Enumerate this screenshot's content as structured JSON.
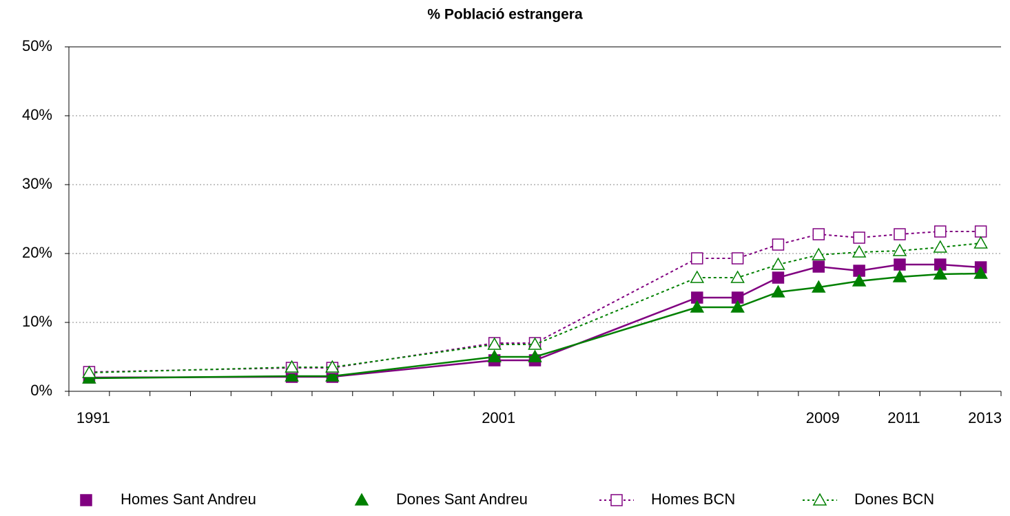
{
  "chart_data": {
    "type": "line",
    "title": "% Població estrangera",
    "x": [
      1991,
      1996,
      1997,
      2001,
      2002,
      2006,
      2007,
      2008,
      2009,
      2010,
      2011,
      2012,
      2013
    ],
    "xlim": [
      1990.5,
      2013.5
    ],
    "xticks": [
      1991,
      2001,
      2009,
      2011,
      2013
    ],
    "ylim": [
      0,
      50
    ],
    "yticks": [
      {
        "value": 0,
        "label": "0%"
      },
      {
        "value": 10,
        "label": "10%"
      },
      {
        "value": 20,
        "label": "20%"
      },
      {
        "value": 30,
        "label": "30%"
      },
      {
        "value": 40,
        "label": "40%"
      },
      {
        "value": 50,
        "label": "50%"
      }
    ],
    "grid": true,
    "legend": "bottom",
    "series": [
      {
        "name": "Homes Sant Andreu",
        "color": "#800080",
        "marker": "square",
        "filled": true,
        "dashed": false,
        "values": [
          2.0,
          2.1,
          2.1,
          4.5,
          4.5,
          13.6,
          13.6,
          16.5,
          18.1,
          17.5,
          18.4,
          18.4,
          18.0
        ]
      },
      {
        "name": "Dones Sant Andreu",
        "color": "#008000",
        "marker": "triangle",
        "filled": true,
        "dashed": false,
        "values": [
          1.9,
          2.2,
          2.2,
          5.0,
          5.0,
          12.2,
          12.2,
          14.4,
          15.1,
          16.0,
          16.6,
          17.0,
          17.1
        ]
      },
      {
        "name": "Homes BCN",
        "color": "#800080",
        "marker": "square",
        "filled": false,
        "dashed": true,
        "values": [
          2.8,
          3.4,
          3.4,
          7.0,
          7.0,
          19.3,
          19.3,
          21.3,
          22.8,
          22.3,
          22.8,
          23.2,
          23.2
        ]
      },
      {
        "name": "Dones BCN",
        "color": "#008000",
        "marker": "triangle",
        "filled": false,
        "dashed": true,
        "values": [
          2.7,
          3.5,
          3.5,
          6.8,
          6.8,
          16.5,
          16.5,
          18.4,
          19.8,
          20.2,
          20.4,
          20.9,
          21.5
        ]
      }
    ]
  }
}
